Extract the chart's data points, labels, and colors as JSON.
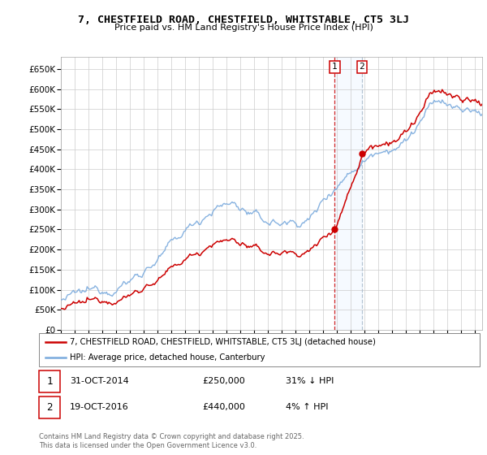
{
  "title": "7, CHESTFIELD ROAD, CHESTFIELD, WHITSTABLE, CT5 3LJ",
  "subtitle": "Price paid vs. HM Land Registry's House Price Index (HPI)",
  "ylim": [
    0,
    680000
  ],
  "yticks": [
    0,
    50000,
    100000,
    150000,
    200000,
    250000,
    300000,
    350000,
    400000,
    450000,
    500000,
    550000,
    600000,
    650000
  ],
  "ytick_labels": [
    "£0",
    "£50K",
    "£100K",
    "£150K",
    "£200K",
    "£250K",
    "£300K",
    "£350K",
    "£400K",
    "£450K",
    "£500K",
    "£550K",
    "£600K",
    "£650K"
  ],
  "sale1": {
    "date_label": "31-OCT-2014",
    "price": 250000,
    "hpi_pct": "31%",
    "hpi_dir": "↓",
    "marker_year": 2014.83
  },
  "sale2": {
    "date_label": "19-OCT-2016",
    "price": 440000,
    "hpi_pct": "4%",
    "hpi_dir": "↑",
    "marker_year": 2016.79
  },
  "legend_label1": "7, CHESTFIELD ROAD, CHESTFIELD, WHITSTABLE, CT5 3LJ (detached house)",
  "legend_label2": "HPI: Average price, detached house, Canterbury",
  "copyright": "Contains HM Land Registry data © Crown copyright and database right 2025.\nThis data is licensed under the Open Government Licence v3.0.",
  "line_color1": "#cc0000",
  "line_color2": "#7aaadd",
  "shade_color": "#ddeeff",
  "marker_box_color": "#cc0000",
  "background_color": "#ffffff",
  "grid_color": "#cccccc",
  "xstart": 1995,
  "xend": 2025.5
}
